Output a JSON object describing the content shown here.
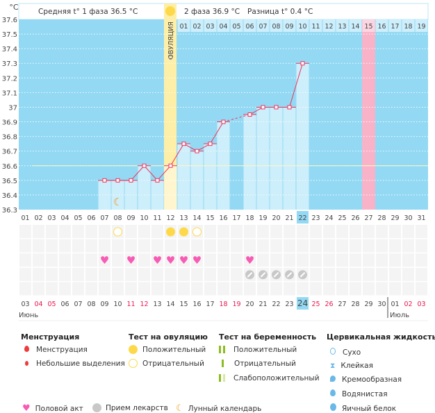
{
  "header": {
    "unit": "°C",
    "phase1_label": "Средняя t° 1 фаза 36.5 °C",
    "phase2_label": "2 фаза 36.9 °C",
    "diff_label": "Разница t° 0.4 °C",
    "ovulation_label": "ОВУЛЯЦИЯ"
  },
  "chart_data": {
    "type": "bar",
    "ylabel": "°C",
    "ylim": [
      36.3,
      37.6
    ],
    "yticks": [
      "37.6",
      "37.5",
      "37.4",
      "37.3",
      "37.2",
      "37.1",
      "37",
      "36.9",
      "36.8",
      "36.7",
      "36.6",
      "36.5",
      "36.4",
      "36.3"
    ],
    "cycle_days": [
      "01",
      "02",
      "03",
      "04",
      "05",
      "06",
      "07",
      "08",
      "09",
      "10",
      "11",
      "12",
      "13",
      "14",
      "15",
      "16",
      "17",
      "18",
      "19",
      "20",
      "21",
      "22",
      "23",
      "24",
      "25",
      "26",
      "27",
      "28",
      "29",
      "30",
      "31"
    ],
    "temperatures": [
      null,
      null,
      null,
      null,
      null,
      null,
      36.5,
      36.5,
      36.5,
      36.6,
      36.5,
      36.6,
      36.75,
      36.7,
      36.75,
      36.9,
      null,
      36.95,
      37.0,
      37.0,
      37.0,
      37.3,
      null,
      null,
      null,
      null,
      null,
      null,
      null,
      null,
      null
    ],
    "cover_line": 36.6,
    "ovulation_day": 12,
    "current_day": 22,
    "highlight_day": 27,
    "phase2_days": [
      "01",
      "02",
      "03",
      "04",
      "05",
      "06",
      "07",
      "08",
      "09",
      "10",
      "11",
      "12",
      "13",
      "14",
      "15",
      "16",
      "17",
      "18",
      "19"
    ],
    "grid": true,
    "colors": {
      "background": "#93d9f3",
      "bar": "#cdeefb",
      "line": "#f0305a",
      "ovulation": "#fdefa8",
      "highlight": "#f9b3c9",
      "cover_line": "#fff6c0"
    }
  },
  "markers": {
    "moon_days": [
      8
    ],
    "ovulation_test_positive": [
      12,
      13
    ],
    "ovulation_test_negative": [
      8,
      14
    ],
    "intercourse": [
      7,
      9,
      11,
      12,
      13,
      14,
      18
    ],
    "medication": [
      18,
      19,
      20,
      21,
      22
    ]
  },
  "calendar": {
    "dates": [
      {
        "d": "03",
        "w": false
      },
      {
        "d": "04",
        "w": true
      },
      {
        "d": "05",
        "w": true
      },
      {
        "d": "06",
        "w": false
      },
      {
        "d": "07",
        "w": false
      },
      {
        "d": "08",
        "w": false
      },
      {
        "d": "09",
        "w": false
      },
      {
        "d": "10",
        "w": false
      },
      {
        "d": "11",
        "w": true
      },
      {
        "d": "12",
        "w": true
      },
      {
        "d": "13",
        "w": false
      },
      {
        "d": "14",
        "w": false
      },
      {
        "d": "15",
        "w": false
      },
      {
        "d": "16",
        "w": false
      },
      {
        "d": "17",
        "w": false
      },
      {
        "d": "18",
        "w": true
      },
      {
        "d": "19",
        "w": true
      },
      {
        "d": "20",
        "w": false
      },
      {
        "d": "21",
        "w": false
      },
      {
        "d": "22",
        "w": false
      },
      {
        "d": "23",
        "w": false
      },
      {
        "d": "24",
        "w": false
      },
      {
        "d": "25",
        "w": true
      },
      {
        "d": "26",
        "w": true
      },
      {
        "d": "27",
        "w": false
      },
      {
        "d": "28",
        "w": false
      },
      {
        "d": "29",
        "w": false
      },
      {
        "d": "30",
        "w": false
      },
      {
        "d": "01",
        "w": false
      },
      {
        "d": "02",
        "w": true
      },
      {
        "d": "03",
        "w": true
      }
    ],
    "month1": "Июнь",
    "month2": "Июль"
  },
  "legend": {
    "menstruation": {
      "title": "Менструация",
      "items": [
        "Менструация",
        "Небольшие выделения"
      ]
    },
    "ovulation_test": {
      "title": "Тест на овуляцию",
      "items": [
        "Положительный",
        "Отрицательный"
      ]
    },
    "pregnancy_test": {
      "title": "Тест на беременность",
      "items": [
        "Положительный",
        "Отрицательный",
        "Слабоположительный"
      ]
    },
    "cervical_fluid": {
      "title": "Цервикальная жидкость",
      "items": [
        "Сухо",
        "Клейкая",
        "Кремообразная",
        "Водянистая",
        "Яичный белок"
      ]
    },
    "bottom": [
      "Половой акт",
      "Прием лекарств",
      "Лунный календарь"
    ]
  }
}
